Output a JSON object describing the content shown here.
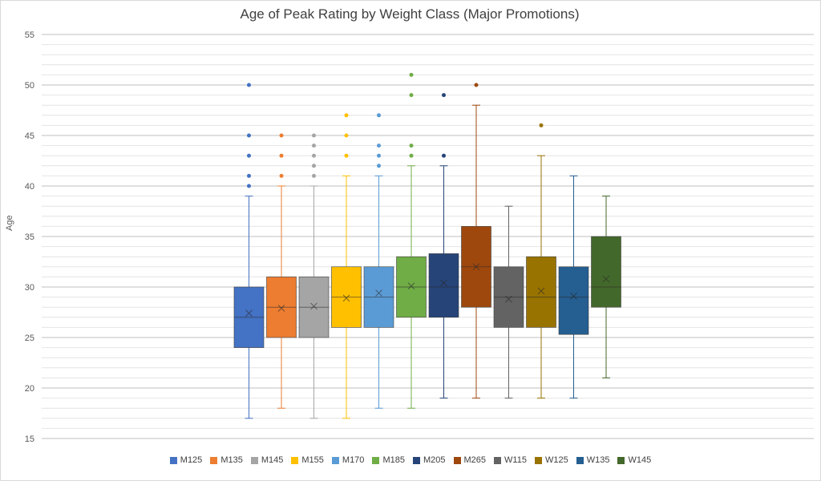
{
  "chart_data": {
    "type": "box",
    "title": "Age of Peak Rating by Weight Class (Major Promotions)",
    "xlabel": "",
    "ylabel": "Age",
    "ylim": [
      15,
      55
    ],
    "yticks": [
      15,
      20,
      25,
      30,
      35,
      40,
      45,
      50,
      55
    ],
    "grid": true,
    "legend_position": "bottom",
    "series": [
      {
        "name": "M125",
        "color": "#4472C4",
        "min": 17,
        "q1": 24,
        "median": 27,
        "q3": 30,
        "max": 39,
        "mean": 27.4,
        "outliers": [
          40,
          41,
          43,
          45,
          50
        ]
      },
      {
        "name": "M135",
        "color": "#ED7D31",
        "min": 18,
        "q1": 25,
        "median": 28,
        "q3": 31,
        "max": 40,
        "mean": 27.9,
        "outliers": [
          41,
          43,
          45
        ]
      },
      {
        "name": "M145",
        "color": "#A5A5A5",
        "min": 17,
        "q1": 25,
        "median": 28,
        "q3": 31,
        "max": 40,
        "mean": 28.1,
        "outliers": [
          41,
          42,
          43,
          44,
          45
        ]
      },
      {
        "name": "M155",
        "color": "#FFC000",
        "min": 17,
        "q1": 26,
        "median": 29,
        "q3": 32,
        "max": 41,
        "mean": 28.9,
        "outliers": [
          43,
          45,
          47
        ]
      },
      {
        "name": "M170",
        "color": "#5B9BD5",
        "min": 18,
        "q1": 26,
        "median": 29,
        "q3": 32,
        "max": 41,
        "mean": 29.4,
        "outliers": [
          42,
          43,
          44,
          47
        ]
      },
      {
        "name": "M185",
        "color": "#70AD47",
        "min": 18,
        "q1": 27,
        "median": 30,
        "q3": 33,
        "max": 42,
        "mean": 30.1,
        "outliers": [
          43,
          44,
          49,
          51
        ]
      },
      {
        "name": "M205",
        "color": "#264478",
        "min": 19,
        "q1": 27,
        "median": 30,
        "q3": 33.3,
        "max": 42,
        "mean": 30.4,
        "outliers": [
          43,
          49
        ]
      },
      {
        "name": "M265",
        "color": "#9E480E",
        "min": 19,
        "q1": 28,
        "median": 32,
        "q3": 36,
        "max": 48,
        "mean": 32,
        "outliers": [
          50
        ]
      },
      {
        "name": "W115",
        "color": "#636363",
        "min": 19,
        "q1": 26,
        "median": 29,
        "q3": 32,
        "max": 38,
        "mean": 28.8,
        "outliers": []
      },
      {
        "name": "W125",
        "color": "#997300",
        "min": 19,
        "q1": 26,
        "median": 29,
        "q3": 33,
        "max": 43,
        "mean": 29.6,
        "outliers": [
          46
        ]
      },
      {
        "name": "W135",
        "color": "#255E91",
        "min": 19,
        "q1": 25.3,
        "median": 29,
        "q3": 32,
        "max": 41,
        "mean": 29.1,
        "outliers": []
      },
      {
        "name": "W145",
        "color": "#43682B",
        "min": 21,
        "q1": 28,
        "median": 30,
        "q3": 35,
        "max": 39,
        "mean": 30.8,
        "outliers": []
      }
    ]
  }
}
